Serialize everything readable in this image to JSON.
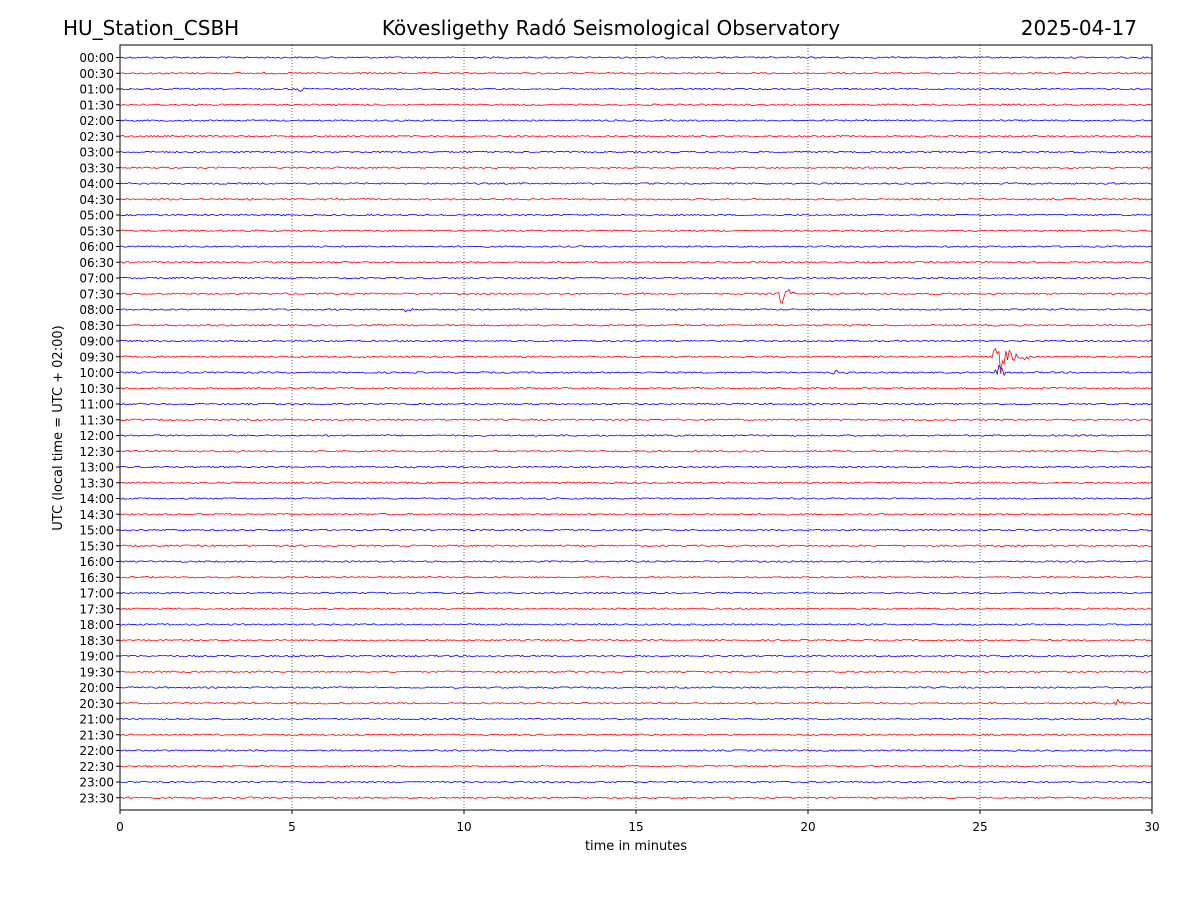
{
  "header": {
    "station": "HU_Station_CSBH",
    "title": "Kövesligethy Radó Seismological Observatory",
    "date": "2025-04-17"
  },
  "chart_data": {
    "type": "line",
    "chart_kind": "helicorder",
    "xlabel": "time in minutes",
    "ylabel": "UTC (local time = UTC + 02:00)",
    "xlim": [
      0,
      30
    ],
    "x_ticks": [
      0,
      5,
      10,
      15,
      20,
      25,
      30
    ],
    "grid": "vertical dotted lines at 5-minute ticks",
    "row_labels": [
      "00:00",
      "00:30",
      "01:00",
      "01:30",
      "02:00",
      "02:30",
      "03:00",
      "03:30",
      "04:00",
      "04:30",
      "05:00",
      "05:30",
      "06:00",
      "06:30",
      "07:00",
      "07:30",
      "08:00",
      "08:30",
      "09:00",
      "09:30",
      "10:00",
      "10:30",
      "11:00",
      "11:30",
      "12:00",
      "12:30",
      "13:00",
      "13:30",
      "14:00",
      "14:30",
      "15:00",
      "15:30",
      "16:00",
      "16:30",
      "17:00",
      "17:30",
      "18:00",
      "18:30",
      "19:00",
      "19:30",
      "20:00",
      "20:30",
      "21:00",
      "21:30",
      "22:00",
      "22:30",
      "23:00",
      "23:30"
    ],
    "trace_colors": [
      "#0000ff",
      "#ff0000"
    ],
    "events": [
      {
        "row": "01:00",
        "minute": 5.3,
        "amplitude": 0.25,
        "duration": 0.4
      },
      {
        "row": "07:30",
        "minute": 19.25,
        "amplitude": 1.2,
        "duration": 0.5
      },
      {
        "row": "08:00",
        "minute": 8.3,
        "amplitude": 0.25,
        "duration": 0.5
      },
      {
        "row": "09:30",
        "minute": 25.5,
        "amplitude": 2.4,
        "duration": 1.0
      },
      {
        "row": "10:00",
        "minute": 25.55,
        "amplitude": 1.0,
        "duration": 0.3
      },
      {
        "row": "10:00",
        "minute": 20.8,
        "amplitude": 0.25,
        "duration": 0.8
      },
      {
        "row": "20:30",
        "minute": 29.0,
        "amplitude": 0.3,
        "duration": 0.6
      }
    ]
  }
}
